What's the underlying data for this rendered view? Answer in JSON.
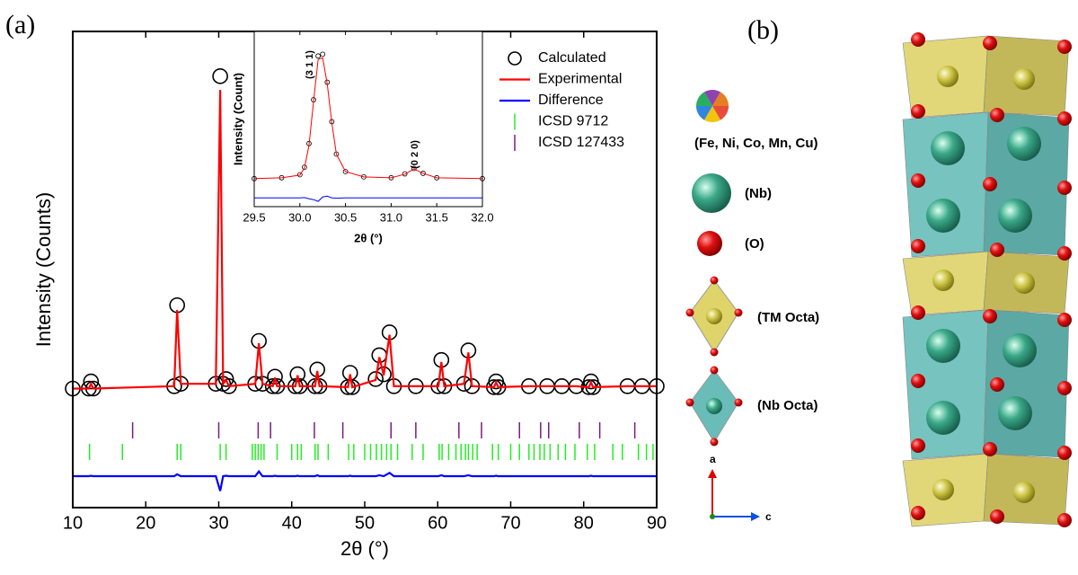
{
  "figure": {
    "labels": [
      "(a)",
      "(b)"
    ]
  },
  "chart_data": [
    {
      "type": "rietveld",
      "xlabel": "2θ (°)",
      "ylabel": "Intensity (Counts)",
      "xlim": [
        10,
        90
      ],
      "xticks": [
        10,
        20,
        30,
        40,
        50,
        60,
        70,
        80,
        90
      ],
      "ylim": [
        0,
        100
      ],
      "legend": "upper right",
      "x": [
        10,
        12.2,
        12.5,
        12.8,
        23.9,
        24.3,
        24.8,
        29.6,
        30.2,
        30.6,
        31.0,
        31.4,
        35.0,
        35.5,
        36.0,
        37.4,
        37.7,
        38.0,
        40.5,
        40.8,
        41.1,
        43.2,
        43.5,
        43.8,
        47.7,
        48,
        48.3,
        51.5,
        52,
        52.6,
        53.4,
        54,
        57,
        60.1,
        60.5,
        60.9,
        63.6,
        64.2,
        64.7,
        67.7,
        68,
        68.3,
        72.5,
        75,
        77,
        79,
        80.7,
        81,
        81.3,
        86,
        88,
        90
      ],
      "series": [
        {
          "name": "Calculated",
          "color": "#000000",
          "marker": "circle",
          "values": [
            25,
            25,
            26.5,
            25,
            25.5,
            42.5,
            26,
            26,
            90.6,
            26,
            27,
            25.5,
            26,
            35,
            26,
            25.5,
            27.5,
            25.5,
            25.5,
            28,
            25.5,
            25.5,
            29,
            25.5,
            25.3,
            28.3,
            25.3,
            27,
            32,
            28,
            36.8,
            25.5,
            25.5,
            25.5,
            31,
            25.5,
            26,
            33,
            25.5,
            25.3,
            26.5,
            25.3,
            25.5,
            25.5,
            25.5,
            25.5,
            25.3,
            26.5,
            25.3,
            25.5,
            25.5,
            25.5
          ]
        },
        {
          "name": "Experimental",
          "color": "#ff0000",
          "marker": "line",
          "values": [
            25,
            25,
            26,
            25,
            25.5,
            41.5,
            26,
            26,
            87.7,
            26,
            26.8,
            25.5,
            26,
            34.5,
            26,
            25.5,
            27.3,
            25.5,
            25.5,
            27.8,
            25.5,
            25.5,
            28.7,
            25.5,
            25.3,
            28,
            25.3,
            26.8,
            31.6,
            27.8,
            36.3,
            25.5,
            25.5,
            25.5,
            30.6,
            25.5,
            26,
            32.6,
            25.5,
            25.3,
            26.3,
            25.3,
            25.5,
            25.5,
            25.5,
            25.5,
            25.3,
            26.3,
            25.3,
            25.5,
            25.5,
            25.5
          ]
        },
        {
          "name": "Difference",
          "color": "#0000ff",
          "marker": "line",
          "values": [
            6.6,
            6.6,
            6.7,
            6.6,
            6.6,
            7,
            6.6,
            6.6,
            3.5,
            6.6,
            6.7,
            6.6,
            6.6,
            7.6,
            6.6,
            6.6,
            6.7,
            6.6,
            6.6,
            6.7,
            6.6,
            6.6,
            6.8,
            6.6,
            6.6,
            6.7,
            6.6,
            6.6,
            6.8,
            6.6,
            7.3,
            6.6,
            6.6,
            6.6,
            6.8,
            6.6,
            6.6,
            6.8,
            6.6,
            6.6,
            6.7,
            6.6,
            6.6,
            6.6,
            6.6,
            6.6,
            6.6,
            6.7,
            6.6,
            6.6,
            6.6,
            6.6
          ]
        }
      ],
      "reflections": [
        {
          "name": "ICSD 9712",
          "color": "#22ee22",
          "positions": [
            12.3,
            16.8,
            24.3,
            24.8,
            30.2,
            31,
            34.6,
            35,
            35.4,
            35.8,
            36.2,
            38,
            40,
            40.8,
            41.3,
            43.2,
            43.6,
            45,
            47.8,
            48.5,
            50,
            50.8,
            51.6,
            52.3,
            53,
            53.6,
            54.5,
            56.5,
            58,
            60.2,
            60.6,
            61.5,
            62.5,
            63.2,
            63.8,
            64.2,
            64.8,
            65.4,
            67.5,
            68.3,
            70,
            71.2,
            72.5,
            73.2,
            74,
            74.6,
            75.4,
            76.5,
            77.5,
            78.8,
            80.5,
            81.5,
            84,
            85.3,
            87.5,
            88.6,
            89.5
          ]
        },
        {
          "name": "ICSD 127433",
          "color": "#7b1c7b",
          "positions": [
            18.2,
            30,
            35.4,
            37.1,
            43.1,
            47,
            53.6,
            57,
            62.9,
            66,
            71.2,
            74.1,
            75.2,
            79.4,
            82.2,
            87
          ]
        }
      ]
    },
    {
      "type": "rietveld",
      "xlabel": "2θ (°)",
      "ylabel": "Intensity (Count)",
      "xlim": [
        29.5,
        32
      ],
      "xticks": [
        29.5,
        {
          "value": 30,
          "label": "30.0"
        },
        30.5,
        {
          "value": 31,
          "label": "31.0"
        },
        31.5,
        {
          "value": 32,
          "label": "32.0"
        }
      ],
      "ylim": [
        0,
        100
      ],
      "annotations": [
        "(3 1 1)",
        "(0 2 0)"
      ],
      "x": [
        29.5,
        29.8,
        30.0,
        30.05,
        30.1,
        30.15,
        30.2,
        30.25,
        30.3,
        30.35,
        30.4,
        30.5,
        30.7,
        31.0,
        31.15,
        31.25,
        31.35,
        31.5,
        32.0
      ],
      "series": [
        {
          "color": "#000000",
          "marker": "circle",
          "values": [
            16,
            16.5,
            18.2,
            22.5,
            36,
            61,
            86,
            87,
            71,
            48.5,
            30,
            20,
            17,
            16.5,
            18.7,
            21.8,
            19,
            16.5,
            16
          ]
        },
        {
          "color": "#ff0000",
          "marker": "line",
          "values": [
            16,
            16.5,
            18,
            22,
            35,
            60,
            84,
            85,
            70,
            48,
            30,
            20,
            17,
            16.5,
            18.5,
            21.5,
            19,
            16.5,
            16
          ]
        },
        {
          "color": "#0000ff",
          "marker": "line",
          "values": [
            5,
            5,
            5,
            5.2,
            4.5,
            4,
            3,
            5.5,
            6,
            5,
            4.8,
            5,
            5,
            5,
            5,
            5,
            5,
            5,
            5
          ]
        }
      ]
    }
  ],
  "structure": {
    "legend": [
      "(Fe, Ni, Co, Mn, Cu)",
      "(Nb)",
      "(O)",
      "(TM Octa)",
      "(Nb Octa)"
    ],
    "axes": [
      "a",
      "c"
    ]
  }
}
